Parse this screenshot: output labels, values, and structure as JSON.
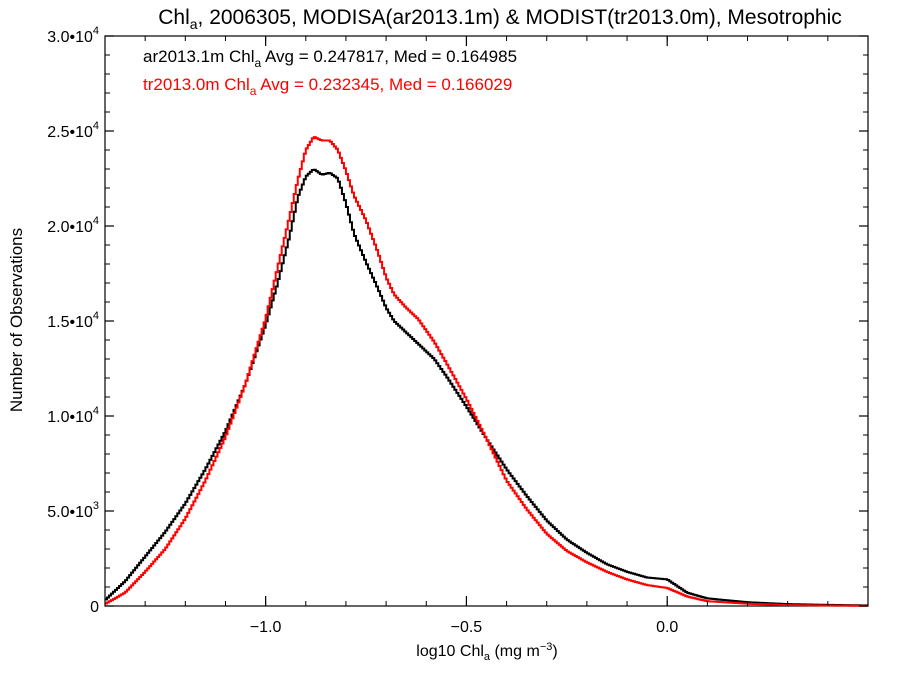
{
  "chart_data": {
    "type": "line",
    "title": {
      "prefix": "Chl",
      "sub": "a",
      "rest": ", 2006305, MODISA(ar2013.1m) & MODIST(tr2013.0m), Mesotrophic"
    },
    "xlabel": {
      "prefix": "log10 Chl",
      "sub": "a",
      "rest": " (mg m",
      "sup": "−3",
      "end": ")"
    },
    "ylabel": "Number of Observations",
    "xlim": [
      -1.4,
      0.5
    ],
    "ylim": [
      0,
      30000
    ],
    "x_ticks": [
      {
        "value": -1.0,
        "label": "−1.0"
      },
      {
        "value": -0.5,
        "label": "−0.5"
      },
      {
        "value": 0.0,
        "label": "0.0"
      }
    ],
    "y_ticks": [
      {
        "value": 0,
        "mantissa": "0",
        "exp": ""
      },
      {
        "value": 5000,
        "mantissa": "5.0•10",
        "exp": "3"
      },
      {
        "value": 10000,
        "mantissa": "1.0•10",
        "exp": "4"
      },
      {
        "value": 15000,
        "mantissa": "1.5•10",
        "exp": "4"
      },
      {
        "value": 20000,
        "mantissa": "2.0•10",
        "exp": "4"
      },
      {
        "value": 25000,
        "mantissa": "2.5•10",
        "exp": "4"
      },
      {
        "value": 30000,
        "mantissa": "3.0•10",
        "exp": "4"
      }
    ],
    "annotations": [
      {
        "series": "ar2013.1m",
        "color": "#000000",
        "pre": "ar2013.1m Chl",
        "sub": "a",
        "post": " Avg = 0.247817, Med = 0.164985"
      },
      {
        "series": "tr2013.0m",
        "color": "#ff0000",
        "pre": "tr2013.0m Chl",
        "sub": "a",
        "post": " Avg = 0.232345, Med = 0.166029"
      }
    ],
    "series": [
      {
        "name": "ar2013.1m",
        "color": "#000000",
        "x": [
          -1.4,
          -1.35,
          -1.3,
          -1.25,
          -1.2,
          -1.15,
          -1.1,
          -1.05,
          -1.0,
          -0.97,
          -0.94,
          -0.92,
          -0.9,
          -0.88,
          -0.86,
          -0.84,
          -0.82,
          -0.8,
          -0.78,
          -0.75,
          -0.72,
          -0.7,
          -0.68,
          -0.65,
          -0.62,
          -0.6,
          -0.58,
          -0.55,
          -0.5,
          -0.45,
          -0.4,
          -0.35,
          -0.3,
          -0.25,
          -0.2,
          -0.15,
          -0.1,
          -0.05,
          0.0,
          0.05,
          0.1,
          0.2,
          0.3,
          0.4,
          0.5
        ],
        "y": [
          300,
          1300,
          2600,
          3900,
          5400,
          7200,
          9200,
          11700,
          14800,
          17000,
          19500,
          21500,
          22600,
          23000,
          22700,
          22800,
          22500,
          21200,
          19600,
          18100,
          16700,
          15700,
          15000,
          14400,
          13800,
          13400,
          13000,
          12100,
          10500,
          8800,
          7200,
          5800,
          4500,
          3500,
          2800,
          2200,
          1800,
          1500,
          1400,
          700,
          400,
          200,
          100,
          60,
          30
        ]
      },
      {
        "name": "tr2013.0m",
        "color": "#ff0000",
        "x": [
          -1.4,
          -1.35,
          -1.3,
          -1.25,
          -1.2,
          -1.15,
          -1.1,
          -1.05,
          -1.0,
          -0.97,
          -0.94,
          -0.92,
          -0.9,
          -0.88,
          -0.86,
          -0.84,
          -0.82,
          -0.8,
          -0.78,
          -0.75,
          -0.72,
          -0.7,
          -0.68,
          -0.65,
          -0.62,
          -0.6,
          -0.58,
          -0.55,
          -0.5,
          -0.45,
          -0.4,
          -0.35,
          -0.3,
          -0.25,
          -0.2,
          -0.15,
          -0.1,
          -0.05,
          0.0,
          0.05,
          0.1,
          0.2,
          0.3,
          0.4,
          0.5
        ],
        "y": [
          100,
          700,
          1800,
          3000,
          4600,
          6600,
          8900,
          11700,
          15100,
          17800,
          20500,
          22400,
          24000,
          24700,
          24500,
          24500,
          24000,
          22900,
          21600,
          20300,
          18600,
          17300,
          16400,
          15700,
          15100,
          14500,
          13900,
          12800,
          10900,
          8800,
          6600,
          5100,
          3800,
          2900,
          2300,
          1800,
          1400,
          1100,
          950,
          500,
          250,
          120,
          50,
          25,
          10
        ]
      }
    ]
  }
}
